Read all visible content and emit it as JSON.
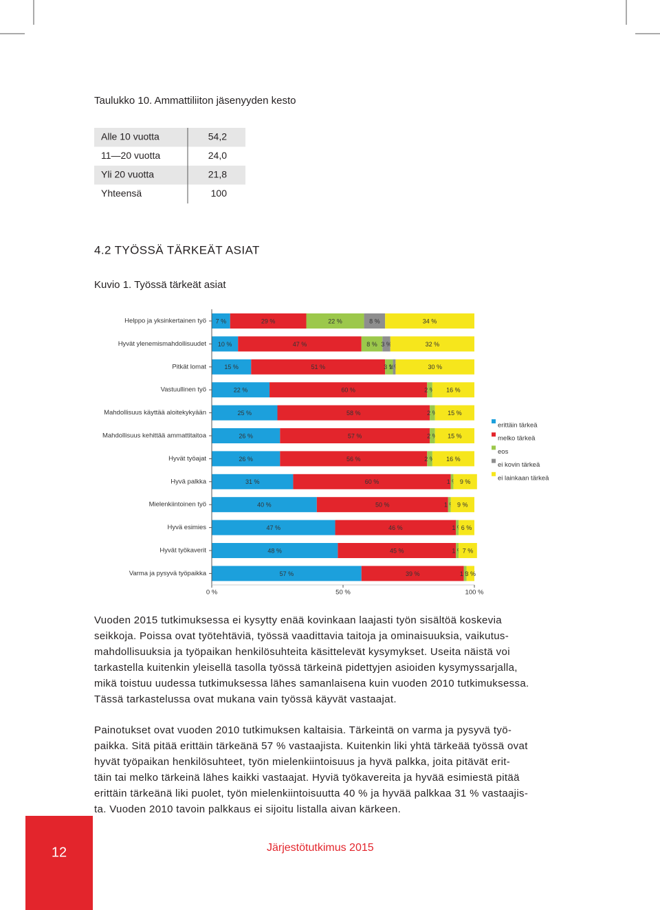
{
  "table": {
    "title": "Taulukko 10. Ammattiliiton jäsenyyden kesto",
    "rows": [
      [
        "Alle 10 vuotta",
        "54,2"
      ],
      [
        "11—20 vuotta",
        "24,0"
      ],
      [
        "Yli 20 vuotta",
        "21,8"
      ],
      [
        "Yhteensä",
        "100"
      ]
    ]
  },
  "section_title": "4.2 TYÖSSÄ TÄRKEÄT ASIAT",
  "chart_data": {
    "type": "stacked-bar",
    "orientation": "horizontal",
    "title": "Kuvio 1. Työssä tärkeät asiat",
    "categories": [
      "Helppo ja yksinkertainen työ",
      "Hyvät ylenemismahdollisuudet",
      "Pitkät lomat",
      "Vastuullinen työ",
      "Mahdollisuus käyttää aloitekykyään",
      "Mahdollisuus kehittää ammattitaitoa",
      "Hyvät työajat",
      "Hyvä palkka",
      "Mielenkiintoinen työ",
      "Hyvä esimies",
      "Hyvät työkaverit",
      "Varma ja pysyvä työpaikka"
    ],
    "series": [
      {
        "name": "erittäin tärkeä",
        "color": "#1ca0dc",
        "values": [
          7,
          10,
          15,
          22,
          25,
          26,
          26,
          31,
          40,
          47,
          48,
          57
        ],
        "value_labels": [
          "7 %",
          "10 %",
          "15 %",
          "22 %",
          "25 %",
          "26 %",
          "26 %",
          "31 %",
          "40 %",
          "47 %",
          "48 %",
          "57 %"
        ]
      },
      {
        "name": "melko tärkeä",
        "color": "#e3252c",
        "values": [
          29,
          47,
          51,
          60,
          58,
          57,
          56,
          60,
          50,
          46,
          45,
          39
        ],
        "value_labels": [
          "29 %",
          "47 %",
          "51 %",
          "60 %",
          "58 %",
          "57 %",
          "56 %",
          "60 %",
          "50 %",
          "46 %",
          "45 %",
          "39 %"
        ]
      },
      {
        "name": "eos",
        "color": "#9cc84b",
        "values": [
          22,
          8,
          3,
          2,
          2,
          2,
          2,
          1,
          1,
          1,
          1,
          1
        ],
        "value_labels": [
          "22 %",
          "8 %",
          "3 %",
          "2 %",
          "2 %",
          "2 %",
          "2 %",
          "1 %",
          "1 %",
          "1 %",
          "1 %",
          "1 %"
        ]
      },
      {
        "name": "ei kovin tärkeä",
        "color": "#8e8e8e",
        "values": [
          8,
          3,
          1,
          null,
          null,
          null,
          null,
          null,
          null,
          null,
          null,
          null
        ],
        "value_labels": [
          "8 %",
          "3 %",
          "1 %",
          null,
          null,
          null,
          null,
          null,
          null,
          null,
          null,
          null
        ]
      },
      {
        "name": "ei lainkaan tärkeä",
        "color": "#f6e61c",
        "values": [
          34,
          32,
          30,
          16,
          15,
          15,
          16,
          9,
          9,
          6,
          7,
          3
        ],
        "value_labels": [
          "34 %",
          "32 %",
          "30 %",
          "16 %",
          "15 %",
          "15 %",
          "16 %",
          "9 %",
          "9 %",
          "6 %",
          "7 %",
          "3 %"
        ]
      }
    ],
    "xlim": [
      0,
      100
    ],
    "xticks": [
      {
        "value": 0,
        "label": "0 %"
      },
      {
        "value": 50,
        "label": "50 %"
      },
      {
        "value": 100,
        "label": "100 %"
      }
    ],
    "legend": "right"
  },
  "paragraphs": [
    {
      "lines": [
        "Vuoden 2015 tutkimuksessa ei kysytty enää kovinkaan laajasti työn sisältöä koskevia",
        "seikkoja. Poissa ovat työtehtäviä, työssä vaadittavia taitoja ja ominaisuuksia, vaikutus-",
        "mahdollisuuksia ja työpaikan henkilösuhteita käsittelevät kysymykset. Useita näistä voi",
        "tarkastella kuitenkin yleisellä tasolla työssä tärkeinä pidettyjen asioiden kysymyssarjalla,",
        "mikä toistuu uudessa tutkimuksessa lähes samanlaisena kuin vuoden 2010 tutkimuksessa.",
        "Tässä tarkastelussa ovat mukana vain työssä käyvät vastaajat."
      ]
    },
    {
      "lines": [
        "Painotukset ovat vuoden 2010 tutkimuksen kaltaisia. Tärkeintä on varma ja pysyvä työ-",
        "paikka. Sitä pitää erittäin tärkeänä 57 % vastaajista. Kuitenkin liki yhtä tärkeää työssä ovat",
        "hyvät työpaikan henkilösuhteet, työn mielenkiintoisuus ja hyvä palkka, joita pitävät erit-",
        "täin tai melko tärkeinä lähes kaikki vastaajat. Hyviä työkavereita ja hyvää esimiestä pitää",
        "erittäin tärkeänä liki puolet, työn mielenkiintoisuutta 40 % ja hyvää palkkaa 31 % vastaajis-",
        "ta. Vuoden 2010 tavoin palkkaus ei sijoitu listalla aivan kärkeen."
      ]
    }
  ],
  "footer": {
    "page_number": "12",
    "publication": "Järjestötutkimus 2015"
  }
}
